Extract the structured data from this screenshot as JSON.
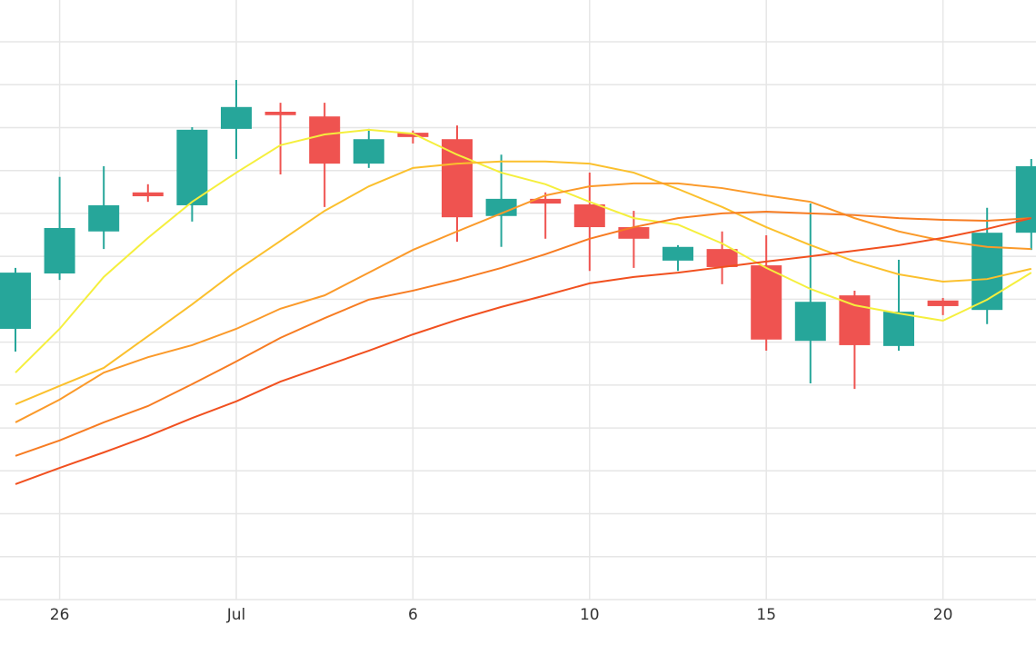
{
  "chart_data": {
    "type": "candlestick",
    "categories": [
      null,
      "26",
      null,
      null,
      null,
      "Jul",
      null,
      null,
      null,
      "6",
      null,
      null,
      null,
      "10",
      null,
      null,
      null,
      "15",
      null,
      null,
      null,
      "20",
      null,
      null
    ],
    "open": [
      6.31,
      7.6,
      8.58,
      9.49,
      9.19,
      10.97,
      11.37,
      11.26,
      10.16,
      10.88,
      10.73,
      8.94,
      9.34,
      9.21,
      8.68,
      7.9,
      8.17,
      7.79,
      6.03,
      7.09,
      5.91,
      6.97,
      6.75,
      8.55
    ],
    "high": [
      7.73,
      9.85,
      10.1,
      9.68,
      11.01,
      12.11,
      11.58,
      11.58,
      10.97,
      10.93,
      11.05,
      10.37,
      9.49,
      9.95,
      9.06,
      8.26,
      8.58,
      8.49,
      9.23,
      7.2,
      7.92,
      7.03,
      9.13,
      10.27
    ],
    "low": [
      5.78,
      7.45,
      8.17,
      9.27,
      8.81,
      10.27,
      9.91,
      9.15,
      10.06,
      10.63,
      8.34,
      8.22,
      8.41,
      7.66,
      7.73,
      7.66,
      7.35,
      5.8,
      5.04,
      4.91,
      5.8,
      6.63,
      6.42,
      8.15
    ],
    "close": [
      7.62,
      8.66,
      9.19,
      9.4,
      10.95,
      11.48,
      11.29,
      10.16,
      10.73,
      10.78,
      8.91,
      9.34,
      9.23,
      8.68,
      8.41,
      8.22,
      7.75,
      6.06,
      6.94,
      5.93,
      6.71,
      6.84,
      8.55,
      10.1
    ],
    "up_color": "#26a69a",
    "down_color": "#ef5350",
    "series": [
      {
        "color": "#f5ef3d",
        "values": [
          5.29,
          6.31,
          7.52,
          8.43,
          9.27,
          9.95,
          10.59,
          10.84,
          10.95,
          10.86,
          10.37,
          9.95,
          9.68,
          9.27,
          8.89,
          8.74,
          8.3,
          7.73,
          7.24,
          6.86,
          6.67,
          6.5,
          6.99,
          7.62
        ]
      },
      {
        "color": "#fbc02d",
        "values": [
          4.55,
          4.98,
          5.4,
          6.14,
          6.88,
          7.66,
          8.36,
          9.06,
          9.63,
          10.06,
          10.16,
          10.21,
          10.21,
          10.16,
          9.95,
          9.57,
          9.15,
          8.68,
          8.26,
          7.88,
          7.58,
          7.41,
          7.47,
          7.71
        ]
      },
      {
        "color": "#fb9a2a",
        "values": [
          4.13,
          4.66,
          5.29,
          5.65,
          5.93,
          6.31,
          6.78,
          7.09,
          7.62,
          8.15,
          8.58,
          9.0,
          9.42,
          9.63,
          9.7,
          9.7,
          9.59,
          9.42,
          9.27,
          8.89,
          8.58,
          8.36,
          8.22,
          8.17
        ]
      },
      {
        "color": "#f77c22",
        "values": [
          3.35,
          3.71,
          4.13,
          4.51,
          5.02,
          5.55,
          6.1,
          6.56,
          6.99,
          7.2,
          7.45,
          7.73,
          8.05,
          8.41,
          8.68,
          8.89,
          9.0,
          9.04,
          9.0,
          8.96,
          8.89,
          8.85,
          8.83,
          8.89
        ]
      },
      {
        "color": "#f1501f",
        "values": [
          2.69,
          3.07,
          3.43,
          3.81,
          4.23,
          4.62,
          5.08,
          5.44,
          5.8,
          6.18,
          6.52,
          6.82,
          7.09,
          7.37,
          7.52,
          7.62,
          7.75,
          7.88,
          8.0,
          8.13,
          8.26,
          8.43,
          8.64,
          8.89
        ]
      }
    ],
    "ylim": [
      0,
      13
    ],
    "yticks": [
      0,
      1,
      2,
      3,
      4,
      5,
      6,
      7,
      8,
      9,
      10,
      11,
      12,
      13
    ],
    "grid": true
  }
}
